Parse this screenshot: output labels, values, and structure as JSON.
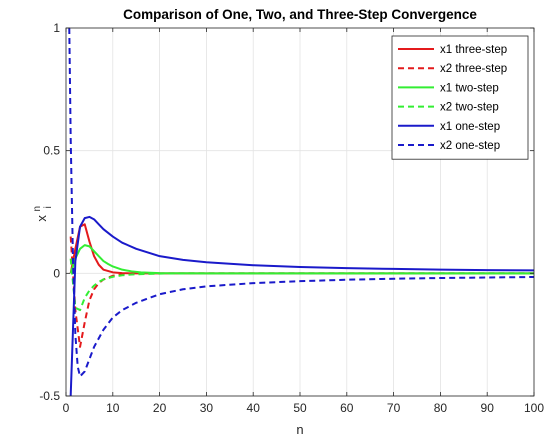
{
  "chart_data": {
    "type": "line",
    "title": "Comparison of One, Two, and Three-Step Convergence",
    "xlabel": "n",
    "ylabel_base": "x",
    "ylabel_sup": "n",
    "ylabel_sub": "i",
    "xlim": [
      0,
      100
    ],
    "ylim": [
      -0.5,
      1
    ],
    "xticks": [
      0,
      10,
      20,
      30,
      40,
      50,
      60,
      70,
      80,
      90,
      100
    ],
    "yticks": [
      -0.5,
      0,
      0.5,
      1
    ],
    "xtick_labels": [
      "0",
      "10",
      "20",
      "30",
      "40",
      "50",
      "60",
      "70",
      "80",
      "90",
      "100"
    ],
    "ytick_labels": [
      "-0.5",
      "0",
      "0.5",
      "1"
    ],
    "grid": true,
    "legend_position": "top-right",
    "series": [
      {
        "name": "x1 three-step",
        "color": "#e41a1c",
        "dash": "solid",
        "x": [
          1,
          2,
          3,
          4,
          5,
          6,
          7,
          8,
          10,
          12,
          14,
          16,
          20,
          30,
          100
        ],
        "y": [
          0.0,
          0.1,
          0.19,
          0.2,
          0.13,
          0.07,
          0.035,
          0.015,
          0.004,
          0.001,
          0.0,
          0.0,
          0.0,
          0.0,
          0.0
        ]
      },
      {
        "name": "x2 three-step",
        "color": "#e41a1c",
        "dash": "dashed",
        "x": [
          1,
          2,
          3,
          4,
          5,
          6,
          7,
          8,
          10,
          12,
          14,
          16,
          20,
          30,
          100
        ],
        "y": [
          0.15,
          -0.15,
          -0.3,
          -0.2,
          -0.11,
          -0.065,
          -0.04,
          -0.025,
          -0.01,
          -0.004,
          -0.001,
          0.0,
          0.0,
          0.0,
          0.0
        ]
      },
      {
        "name": "x1 two-step",
        "color": "#33ee33",
        "dash": "solid",
        "x": [
          1,
          2,
          3,
          4,
          5,
          6,
          7,
          8,
          9,
          10,
          12,
          14,
          16,
          20,
          30,
          100
        ],
        "y": [
          0.0,
          0.06,
          0.1,
          0.115,
          0.11,
          0.09,
          0.07,
          0.05,
          0.038,
          0.028,
          0.015,
          0.008,
          0.004,
          0.001,
          0.0,
          0.0
        ]
      },
      {
        "name": "x2 two-step",
        "color": "#33ee33",
        "dash": "dashed",
        "x": [
          1,
          2,
          3,
          4,
          5,
          6,
          7,
          8,
          10,
          12,
          14,
          16,
          20,
          30,
          100
        ],
        "y": [
          0.06,
          -0.14,
          -0.15,
          -0.1,
          -0.07,
          -0.05,
          -0.035,
          -0.025,
          -0.014,
          -0.008,
          -0.005,
          -0.003,
          -0.001,
          0.0,
          0.0
        ]
      },
      {
        "name": "x1 one-step",
        "color": "#1a1aca",
        "dash": "solid",
        "x": [
          1,
          2,
          3,
          4,
          5,
          6,
          7,
          8,
          10,
          12,
          15,
          20,
          25,
          30,
          40,
          50,
          60,
          70,
          80,
          90,
          100
        ],
        "y": [
          -0.5,
          0.05,
          0.19,
          0.225,
          0.23,
          0.22,
          0.2,
          0.18,
          0.15,
          0.125,
          0.1,
          0.07,
          0.055,
          0.045,
          0.033,
          0.026,
          0.021,
          0.018,
          0.015,
          0.013,
          0.012
        ]
      },
      {
        "name": "x2 one-step",
        "color": "#1a1aca",
        "dash": "dashed",
        "x": [
          0.7,
          1,
          1.5,
          2,
          2.5,
          3,
          4,
          5,
          6,
          8,
          10,
          12,
          15,
          20,
          25,
          30,
          40,
          50,
          60,
          70,
          80,
          90,
          100
        ],
        "y": [
          1.0,
          0.55,
          0.05,
          -0.25,
          -0.38,
          -0.42,
          -0.4,
          -0.35,
          -0.3,
          -0.23,
          -0.18,
          -0.15,
          -0.12,
          -0.085,
          -0.065,
          -0.053,
          -0.04,
          -0.032,
          -0.026,
          -0.022,
          -0.019,
          -0.017,
          -0.015
        ]
      }
    ]
  }
}
